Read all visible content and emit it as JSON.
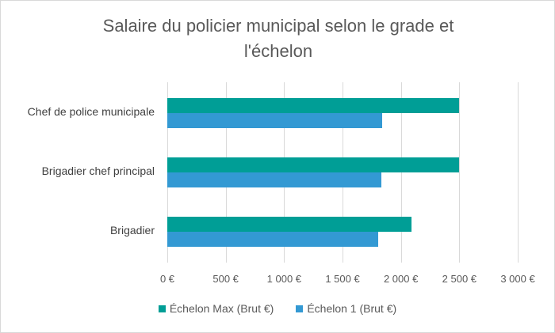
{
  "chart_data": {
    "type": "bar",
    "orientation": "horizontal",
    "title": "Salaire du policier municipal selon le grade et l'échelon",
    "categories": [
      "Chef de police municipale",
      "Brigadier chef principal",
      "Brigadier"
    ],
    "series": [
      {
        "name": "Échelon Max (Brut €)",
        "color": "#009E96",
        "values": [
          2500,
          2500,
          2090
        ]
      },
      {
        "name": "Échelon 1 (Brut €)",
        "color": "#3399D3",
        "values": [
          1840,
          1835,
          1805
        ]
      }
    ],
    "xlabel": "",
    "ylabel": "",
    "xlim": [
      0,
      3000
    ],
    "xticks": [
      "0 €",
      "500 €",
      "1 000 €",
      "1 500 €",
      "2 000 €",
      "2 500 €",
      "3 000 €"
    ],
    "grid": true,
    "legend_position": "bottom"
  },
  "title_line1": "Salaire du policier municipal selon le grade et",
  "title_line2": "l'échelon"
}
